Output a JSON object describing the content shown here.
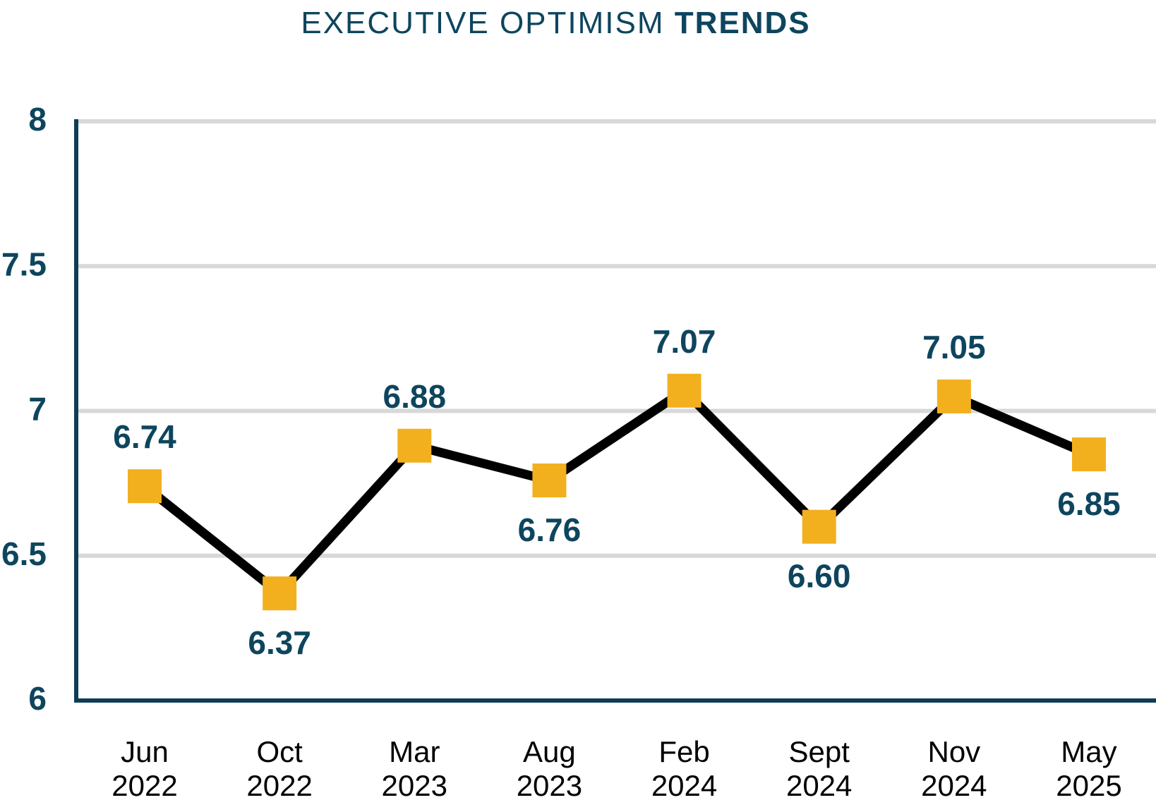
{
  "title": {
    "regular": "EXECUTIVE OPTIMISM ",
    "bold": "TRENDS"
  },
  "chart_data": {
    "type": "line",
    "title": "EXECUTIVE OPTIMISM TRENDS",
    "categories": [
      "Jun 2022",
      "Oct 2022",
      "Mar 2023",
      "Aug 2023",
      "Feb 2024",
      "Sept 2024",
      "Nov 2024",
      "May 2025"
    ],
    "values": [
      6.74,
      6.37,
      6.88,
      6.76,
      7.07,
      6.6,
      7.05,
      6.85
    ],
    "points": [
      {
        "month": "Jun",
        "year": "2022",
        "value": 6.74,
        "label": "6.74",
        "label_position": "above"
      },
      {
        "month": "Oct",
        "year": "2022",
        "value": 6.37,
        "label": "6.37",
        "label_position": "below"
      },
      {
        "month": "Mar",
        "year": "2023",
        "value": 6.88,
        "label": "6.88",
        "label_position": "above"
      },
      {
        "month": "Aug",
        "year": "2023",
        "value": 6.76,
        "label": "6.76",
        "label_position": "below"
      },
      {
        "month": "Feb",
        "year": "2024",
        "value": 7.07,
        "label": "7.07",
        "label_position": "above"
      },
      {
        "month": "Sept",
        "year": "2024",
        "value": 6.6,
        "label": "6.60",
        "label_position": "below"
      },
      {
        "month": "Nov",
        "year": "2024",
        "value": 7.05,
        "label": "7.05",
        "label_position": "above"
      },
      {
        "month": "May",
        "year": "2025",
        "value": 6.85,
        "label": "6.85",
        "label_position": "below"
      }
    ],
    "xlabel": "",
    "ylabel": "",
    "ylim": [
      6,
      8
    ],
    "y_ticks": [
      {
        "label": "8",
        "value": 8.0
      },
      {
        "label": "7.5",
        "value": 7.5
      },
      {
        "label": "7",
        "value": 7.0
      },
      {
        "label": "6.5",
        "value": 6.5
      },
      {
        "label": "6",
        "value": 6.0
      }
    ],
    "grid": "horizontal-only",
    "legend": "none",
    "marker_shape": "square",
    "colors": {
      "marker": "#F2B01F",
      "line": "#000000",
      "navy_text": "#0E455E",
      "axis": "#0E3E55",
      "gridline": "#D8D8D8",
      "x_label_text": "#000000"
    }
  }
}
